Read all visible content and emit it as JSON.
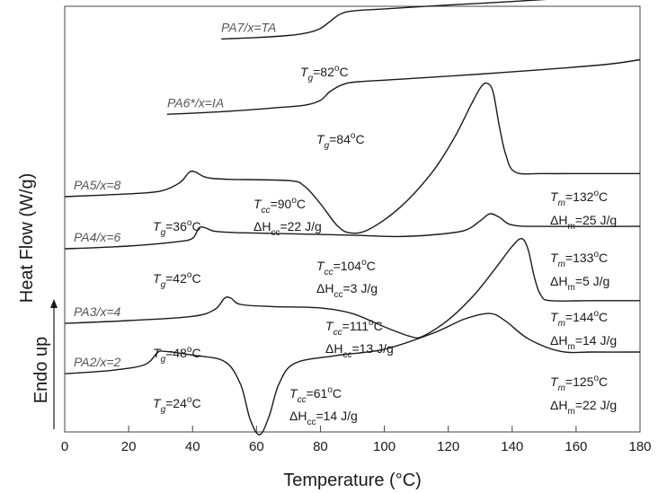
{
  "chart_data": {
    "type": "line",
    "xlabel": "Temperature (°C)",
    "ylabel": "Heat Flow (W/g)",
    "endo_label": "Endo up",
    "xlim": [
      0,
      180
    ],
    "x_ticks": [
      0,
      20,
      40,
      60,
      80,
      100,
      120,
      140,
      160,
      180
    ],
    "grid": false,
    "series": [
      {
        "name": "PA7/x=TA",
        "points": [
          [
            49,
            34.0
          ],
          [
            60,
            34.4
          ],
          [
            70,
            35.0
          ],
          [
            76,
            35.8
          ],
          [
            80,
            37.0
          ],
          [
            83,
            39.0
          ],
          [
            86,
            41.0
          ],
          [
            90,
            42.0
          ],
          [
            100,
            42.6
          ],
          [
            120,
            43.7
          ],
          [
            140,
            44.7
          ],
          [
            160,
            45.9
          ],
          [
            180,
            47.6
          ]
        ],
        "annotations": [
          {
            "tg": "82",
            "at": 82
          }
        ]
      },
      {
        "name": "PA6*/x=IA",
        "points": [
          [
            32,
            33.0
          ],
          [
            50,
            33.8
          ],
          [
            65,
            34.8
          ],
          [
            75,
            35.6
          ],
          [
            80,
            37.0
          ],
          [
            83,
            39.5
          ],
          [
            87,
            41.5
          ],
          [
            92,
            42.3
          ],
          [
            110,
            43.3
          ],
          [
            130,
            44.5
          ],
          [
            150,
            45.8
          ],
          [
            170,
            47.3
          ],
          [
            180,
            48.6
          ]
        ],
        "annotations": [
          {
            "tg": "84",
            "at": 84
          }
        ]
      },
      {
        "name": "PA5/x=8",
        "points": [
          [
            0,
            30.0
          ],
          [
            20,
            30.8
          ],
          [
            30,
            31.6
          ],
          [
            36,
            34.0
          ],
          [
            39,
            37.0
          ],
          [
            41,
            37.0
          ],
          [
            44,
            35.6
          ],
          [
            50,
            35.0
          ],
          [
            70,
            34.6
          ],
          [
            75,
            33.0
          ],
          [
            80,
            28.0
          ],
          [
            85,
            22.0
          ],
          [
            89,
            19.7
          ],
          [
            95,
            20.6
          ],
          [
            105,
            27.0
          ],
          [
            115,
            37.0
          ],
          [
            122,
            47.0
          ],
          [
            127,
            56.0
          ],
          [
            130,
            61.0
          ],
          [
            132,
            62.4
          ],
          [
            134,
            60.0
          ],
          [
            136,
            50.0
          ],
          [
            138,
            42.0
          ],
          [
            141,
            37.0
          ],
          [
            150,
            36.6
          ],
          [
            165,
            36.6
          ],
          [
            180,
            36.6
          ]
        ],
        "annotations": [
          {
            "tg": "36",
            "at": 36
          },
          {
            "tcc": "90",
            "dhcc": "22",
            "at": 90
          },
          {
            "tm": "132",
            "dhm": "25",
            "at": 132
          }
        ]
      },
      {
        "name": "PA4/x=6",
        "points": [
          [
            0,
            31.0
          ],
          [
            20,
            31.8
          ],
          [
            35,
            33.0
          ],
          [
            40,
            34.0
          ],
          [
            42,
            37.0
          ],
          [
            44,
            37.0
          ],
          [
            47,
            36.0
          ],
          [
            55,
            35.6
          ],
          [
            70,
            35.3
          ],
          [
            90,
            34.9
          ],
          [
            104,
            34.5
          ],
          [
            115,
            35.0
          ],
          [
            125,
            36.2
          ],
          [
            130,
            39.0
          ],
          [
            133,
            41.0
          ],
          [
            136,
            40.0
          ],
          [
            140,
            37.8
          ],
          [
            150,
            37.4
          ],
          [
            180,
            37.4
          ]
        ],
        "annotations": [
          {
            "tg": "42",
            "at": 42
          },
          {
            "tcc": "104",
            "dhcc": "3",
            "at": 104
          },
          {
            "tm": "133",
            "dhm": "5",
            "at": 133
          }
        ]
      },
      {
        "name": "PA3/x=4",
        "points": [
          [
            0,
            31.0
          ],
          [
            20,
            31.8
          ],
          [
            40,
            33.0
          ],
          [
            47,
            35.0
          ],
          [
            50,
            38.2
          ],
          [
            52,
            38.2
          ],
          [
            55,
            36.4
          ],
          [
            65,
            35.8
          ],
          [
            80,
            35.4
          ],
          [
            90,
            33.8
          ],
          [
            100,
            30.0
          ],
          [
            108,
            27.3
          ],
          [
            112,
            27.3
          ],
          [
            120,
            32.0
          ],
          [
            128,
            39.0
          ],
          [
            135,
            47.0
          ],
          [
            140,
            53.0
          ],
          [
            143,
            55.2
          ],
          [
            145,
            52.0
          ],
          [
            147,
            44.0
          ],
          [
            149,
            39.0
          ],
          [
            152,
            37.5
          ],
          [
            165,
            37.5
          ],
          [
            180,
            37.5
          ]
        ],
        "annotations": [
          {
            "tg": "48",
            "at": 48
          },
          {
            "tcc": "111",
            "dhcc": "13",
            "at": 111
          },
          {
            "tm": "144",
            "dhm": "14",
            "at": 144
          }
        ]
      },
      {
        "name": "PA2/x=2",
        "points": [
          [
            0,
            32.0
          ],
          [
            15,
            33.0
          ],
          [
            25,
            34.6
          ],
          [
            29,
            38.0
          ],
          [
            31,
            38.4
          ],
          [
            40,
            37.3
          ],
          [
            50,
            35.5
          ],
          [
            55,
            29.0
          ],
          [
            58,
            19.0
          ],
          [
            61,
            14.6
          ],
          [
            64,
            20.0
          ],
          [
            67,
            29.0
          ],
          [
            72,
            35.0
          ],
          [
            85,
            37.2
          ],
          [
            100,
            39.0
          ],
          [
            115,
            43.5
          ],
          [
            125,
            47.6
          ],
          [
            133,
            49.2
          ],
          [
            138,
            47.0
          ],
          [
            145,
            42.0
          ],
          [
            155,
            38.4
          ],
          [
            165,
            38.2
          ],
          [
            180,
            38.2
          ]
        ],
        "annotations": [
          {
            "tg": "24",
            "at": 24
          },
          {
            "tcc": "61",
            "dhcc": "14",
            "at": 61
          },
          {
            "tm": "125",
            "dhm": "22",
            "at": 125
          }
        ]
      }
    ],
    "annotation_units": {
      "temperature": "°C",
      "enthalpy": "J/g"
    }
  }
}
